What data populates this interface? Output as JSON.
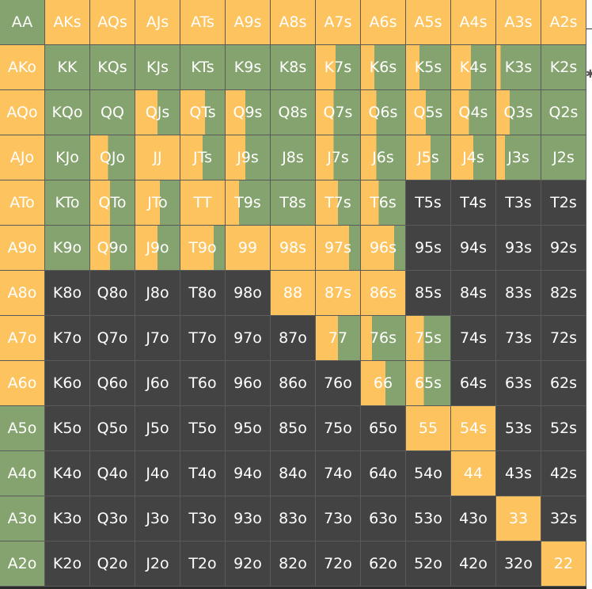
{
  "colors": {
    "raise": "#fdc35e",
    "call": "#85a36e",
    "fold": "#434343"
  },
  "grid": {
    "rows": [
      [
        [
          "AA",
          0,
          1
        ],
        [
          "AKs",
          1,
          0
        ],
        [
          "AQs",
          1,
          0
        ],
        [
          "AJs",
          1,
          0
        ],
        [
          "ATs",
          1,
          0
        ],
        [
          "A9s",
          1,
          0
        ],
        [
          "A8s",
          1,
          0
        ],
        [
          "A7s",
          1,
          0
        ],
        [
          "A6s",
          1,
          0
        ],
        [
          "A5s",
          1,
          0
        ],
        [
          "A4s",
          1,
          0
        ],
        [
          "A3s",
          1,
          0
        ],
        [
          "A2s",
          1,
          0
        ]
      ],
      [
        [
          "AKo",
          1,
          0
        ],
        [
          "KK",
          0,
          1
        ],
        [
          "KQs",
          0,
          1
        ],
        [
          "KJs",
          0,
          1
        ],
        [
          "KTs",
          0,
          1
        ],
        [
          "K9s",
          0,
          1
        ],
        [
          "K8s",
          0,
          1
        ],
        [
          "K7s",
          0.45,
          0.55
        ],
        [
          "K6s",
          0.3,
          0.7
        ],
        [
          "K5s",
          0.3,
          0.7
        ],
        [
          "K4s",
          0.45,
          0.55
        ],
        [
          "K3s",
          0.1,
          0.9
        ],
        [
          "K2s",
          0,
          1
        ]
      ],
      [
        [
          "AQo",
          1,
          0
        ],
        [
          "KQo",
          0,
          1
        ],
        [
          "QQ",
          0,
          1
        ],
        [
          "QJs",
          0.5,
          0.5
        ],
        [
          "QTs",
          0.55,
          0.45
        ],
        [
          "Q9s",
          0.45,
          0.55
        ],
        [
          "Q8s",
          0,
          1
        ],
        [
          "Q7s",
          0.4,
          0.6
        ],
        [
          "Q6s",
          0.35,
          0.65
        ],
        [
          "Q5s",
          0.45,
          0.55
        ],
        [
          "Q4s",
          0.4,
          0.6
        ],
        [
          "Q3s",
          0.3,
          0.7
        ],
        [
          "Q2s",
          0,
          1
        ]
      ],
      [
        [
          "AJo",
          1,
          0
        ],
        [
          "KJo",
          0,
          1
        ],
        [
          "QJo",
          0.4,
          0.6
        ],
        [
          "JJ",
          1,
          0
        ],
        [
          "JTs",
          0.5,
          0.5
        ],
        [
          "J9s",
          0.45,
          0.55
        ],
        [
          "J8s",
          0,
          1
        ],
        [
          "J7s",
          0.4,
          0.6
        ],
        [
          "J6s",
          0.35,
          0.65
        ],
        [
          "J5s",
          0.55,
          0.45
        ],
        [
          "J4s",
          0.5,
          0.5
        ],
        [
          "J3s",
          0.2,
          0.8
        ],
        [
          "J2s",
          0,
          1
        ]
      ],
      [
        [
          "ATo",
          1,
          0
        ],
        [
          "KTo",
          0,
          1
        ],
        [
          "QTo",
          0.45,
          0.55
        ],
        [
          "JTo",
          0.55,
          0.45
        ],
        [
          "TT",
          1,
          0
        ],
        [
          "T9s",
          0.3,
          0.7
        ],
        [
          "T8s",
          0,
          1
        ],
        [
          "T7s",
          0.5,
          0.5
        ],
        [
          "T6s",
          0.4,
          0.6
        ],
        [
          "T5s",
          0,
          0
        ],
        [
          "T4s",
          0,
          0
        ],
        [
          "T3s",
          0,
          0
        ],
        [
          "T2s",
          0,
          0
        ]
      ],
      [
        [
          "A9o",
          1,
          0
        ],
        [
          "K9o",
          0,
          1
        ],
        [
          "Q9o",
          0.45,
          0.55
        ],
        [
          "J9o",
          0.5,
          0.5
        ],
        [
          "T9o",
          0.75,
          0.25
        ],
        [
          "99",
          1,
          0
        ],
        [
          "98s",
          1,
          0
        ],
        [
          "97s",
          0.75,
          0.25
        ],
        [
          "96s",
          0.75,
          0.25
        ],
        [
          "95s",
          0,
          0
        ],
        [
          "94s",
          0,
          0
        ],
        [
          "93s",
          0,
          0
        ],
        [
          "92s",
          0,
          0
        ]
      ],
      [
        [
          "A8o",
          1,
          0
        ],
        [
          "K8o",
          0,
          0
        ],
        [
          "Q8o",
          0,
          0
        ],
        [
          "J8o",
          0,
          0
        ],
        [
          "T8o",
          0,
          0
        ],
        [
          "98o",
          0,
          0
        ],
        [
          "88",
          1,
          0
        ],
        [
          "87s",
          1,
          0
        ],
        [
          "86s",
          1,
          0
        ],
        [
          "85s",
          0,
          0
        ],
        [
          "84s",
          0,
          0
        ],
        [
          "83s",
          0,
          0
        ],
        [
          "82s",
          0,
          0
        ]
      ],
      [
        [
          "A7o",
          1,
          0
        ],
        [
          "K7o",
          0,
          0
        ],
        [
          "Q7o",
          0,
          0
        ],
        [
          "J7o",
          0,
          0
        ],
        [
          "T7o",
          0,
          0
        ],
        [
          "97o",
          0,
          0
        ],
        [
          "87o",
          0,
          0
        ],
        [
          "77",
          0.5,
          0.5
        ],
        [
          "76s",
          0.25,
          0.75
        ],
        [
          "75s",
          0.4,
          0.6
        ],
        [
          "74s",
          0,
          0
        ],
        [
          "73s",
          0,
          0
        ],
        [
          "72s",
          0,
          0
        ]
      ],
      [
        [
          "A6o",
          1,
          0
        ],
        [
          "K6o",
          0,
          0
        ],
        [
          "Q6o",
          0,
          0
        ],
        [
          "J6o",
          0,
          0
        ],
        [
          "T6o",
          0,
          0
        ],
        [
          "96o",
          0,
          0
        ],
        [
          "86o",
          0,
          0
        ],
        [
          "76o",
          0,
          0
        ],
        [
          "66",
          0.55,
          0.45
        ],
        [
          "65s",
          0.4,
          0.6
        ],
        [
          "64s",
          0,
          0
        ],
        [
          "63s",
          0,
          0
        ],
        [
          "62s",
          0,
          0
        ]
      ],
      [
        [
          "A5o",
          0,
          1
        ],
        [
          "K5o",
          0,
          0
        ],
        [
          "Q5o",
          0,
          0
        ],
        [
          "J5o",
          0,
          0
        ],
        [
          "T5o",
          0,
          0
        ],
        [
          "95o",
          0,
          0
        ],
        [
          "85o",
          0,
          0
        ],
        [
          "75o",
          0,
          0
        ],
        [
          "65o",
          0,
          0
        ],
        [
          "55",
          1,
          0
        ],
        [
          "54s",
          1,
          0
        ],
        [
          "53s",
          0,
          0
        ],
        [
          "52s",
          0,
          0
        ]
      ],
      [
        [
          "A4o",
          0,
          1
        ],
        [
          "K4o",
          0,
          0
        ],
        [
          "Q4o",
          0,
          0
        ],
        [
          "J4o",
          0,
          0
        ],
        [
          "T4o",
          0,
          0
        ],
        [
          "94o",
          0,
          0
        ],
        [
          "84o",
          0,
          0
        ],
        [
          "74o",
          0,
          0
        ],
        [
          "64o",
          0,
          0
        ],
        [
          "54o",
          0,
          0
        ],
        [
          "44",
          1,
          0
        ],
        [
          "43s",
          0,
          0
        ],
        [
          "42s",
          0,
          0
        ]
      ],
      [
        [
          "A3o",
          0,
          1
        ],
        [
          "K3o",
          0,
          0
        ],
        [
          "Q3o",
          0,
          0
        ],
        [
          "J3o",
          0,
          0
        ],
        [
          "T3o",
          0,
          0
        ],
        [
          "93o",
          0,
          0
        ],
        [
          "83o",
          0,
          0
        ],
        [
          "73o",
          0,
          0
        ],
        [
          "63o",
          0,
          0
        ],
        [
          "53o",
          0,
          0
        ],
        [
          "43o",
          0,
          0
        ],
        [
          "33",
          1,
          0
        ],
        [
          "32s",
          0,
          0
        ]
      ],
      [
        [
          "A2o",
          0,
          1
        ],
        [
          "K2o",
          0,
          0
        ],
        [
          "Q2o",
          0,
          0
        ],
        [
          "J2o",
          0,
          0
        ],
        [
          "T2o",
          0,
          0
        ],
        [
          "92o",
          0,
          0
        ],
        [
          "82o",
          0,
          0
        ],
        [
          "72o",
          0,
          0
        ],
        [
          "62o",
          0,
          0
        ],
        [
          "52o",
          0,
          0
        ],
        [
          "42o",
          0,
          0
        ],
        [
          "32o",
          0,
          0
        ],
        [
          "22",
          1,
          0
        ]
      ]
    ]
  }
}
